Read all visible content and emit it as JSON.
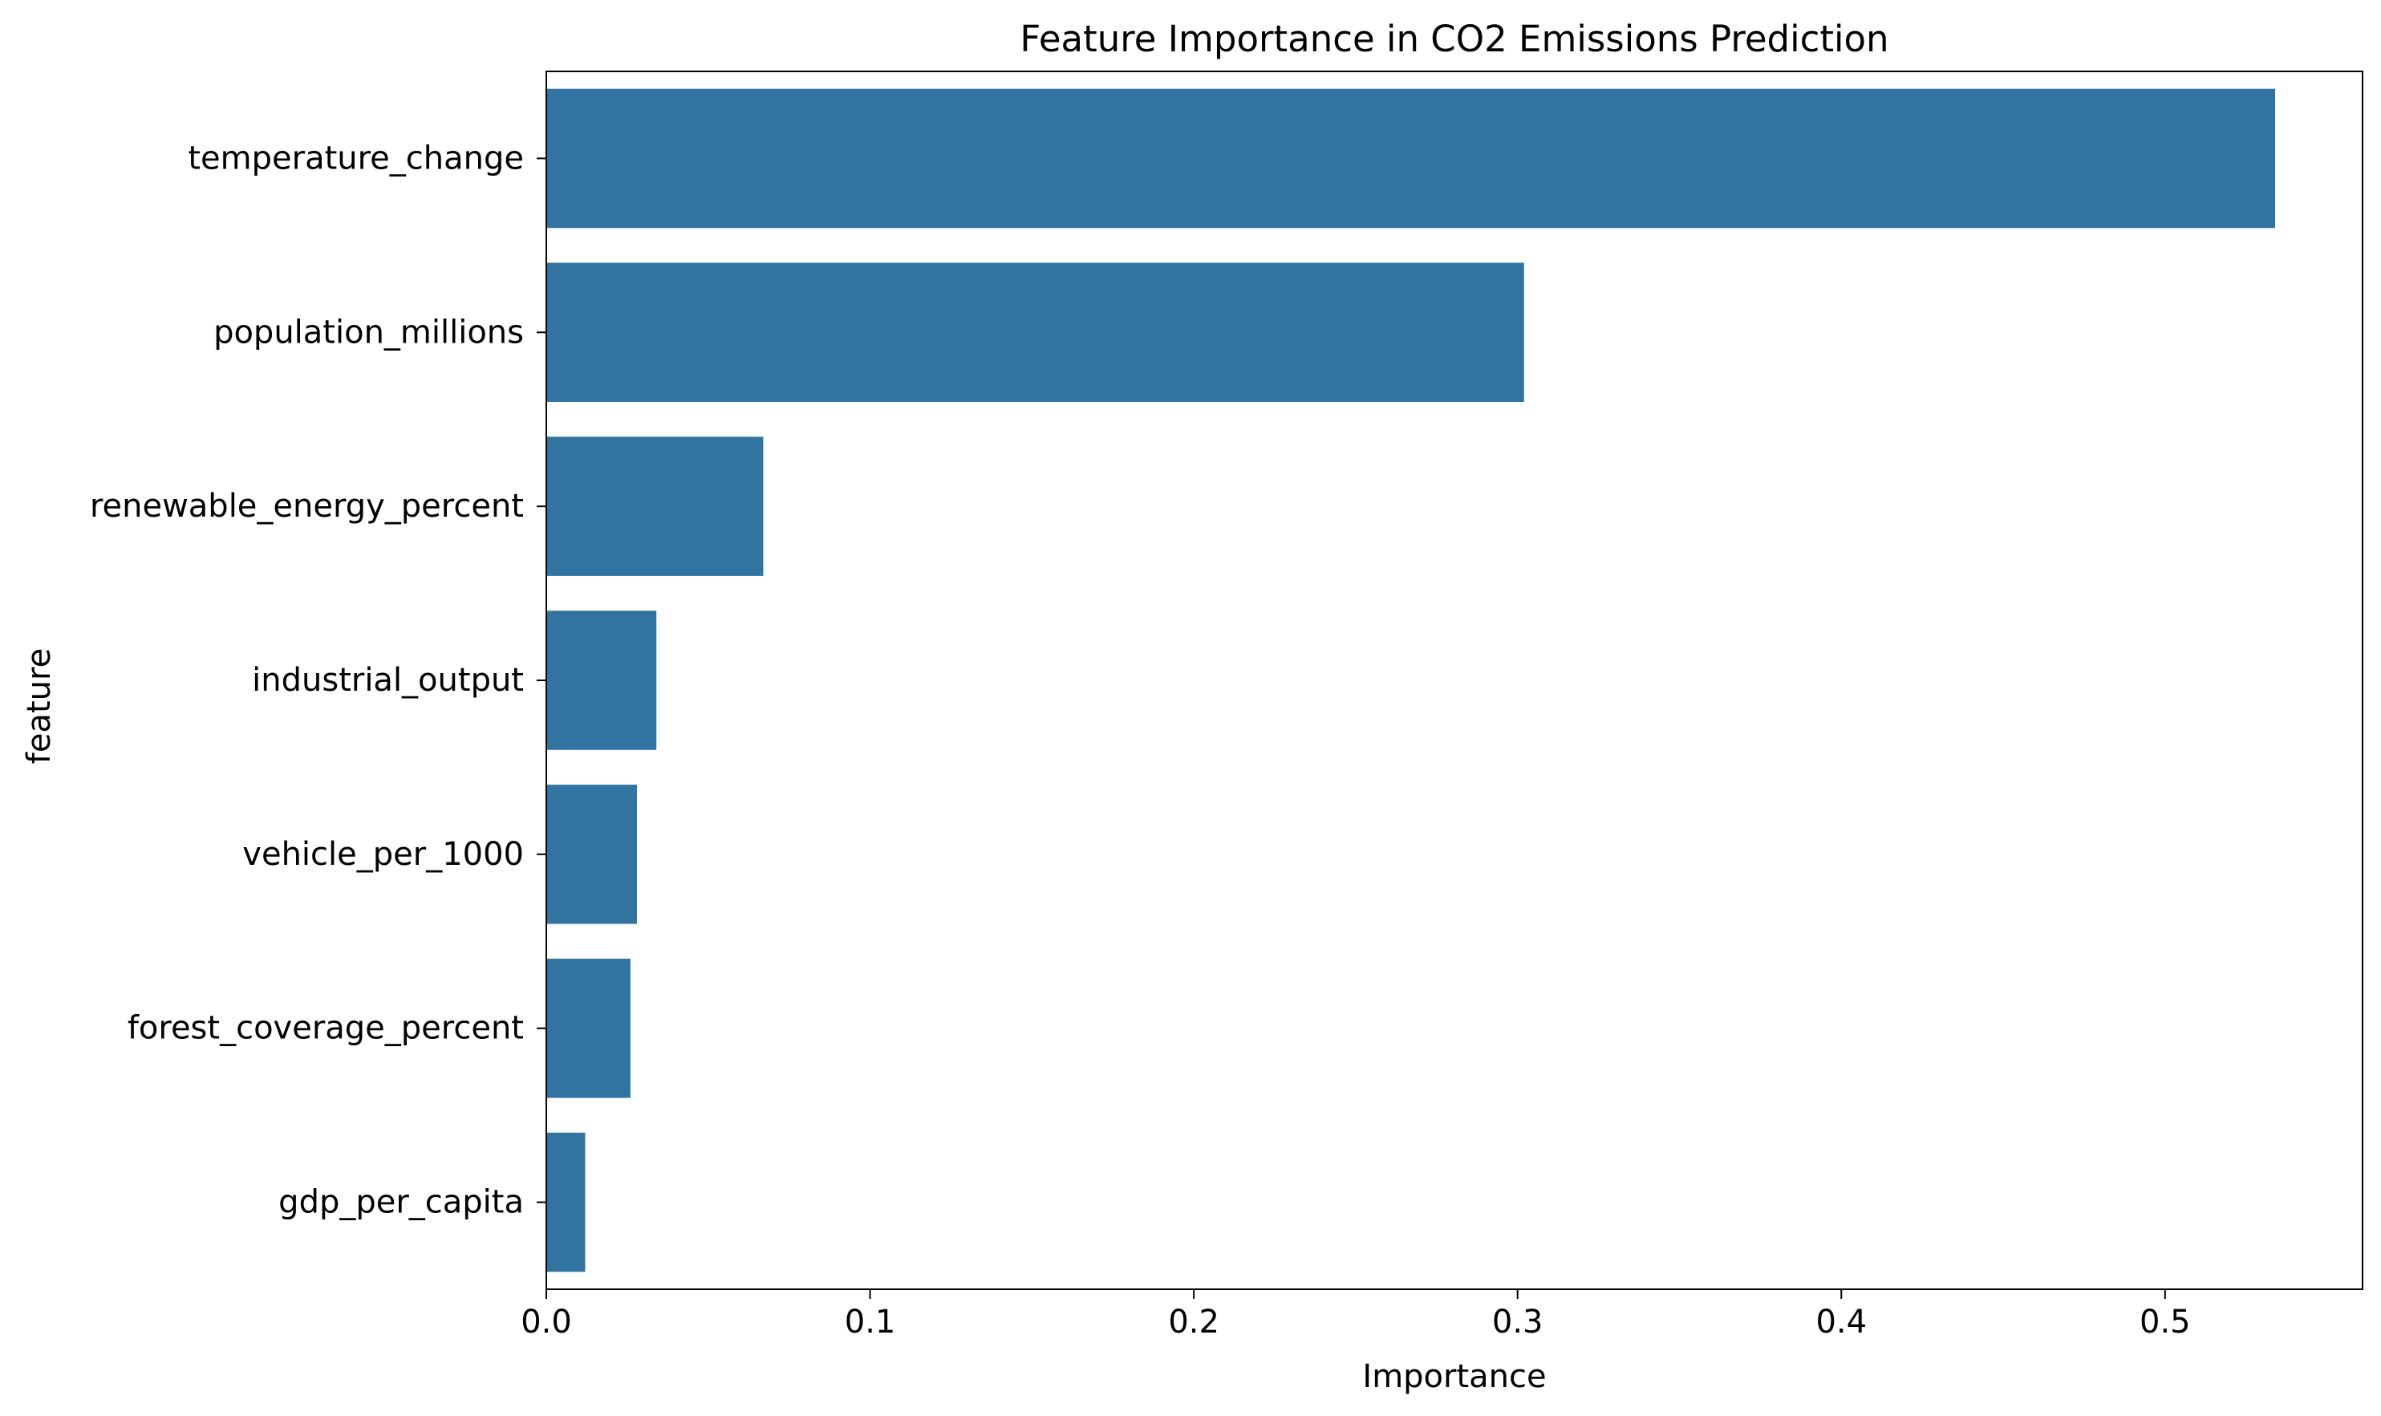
{
  "chart_data": {
    "type": "bar",
    "orientation": "horizontal",
    "title": "Feature Importance in CO2 Emissions Prediction",
    "xlabel": "Importance",
    "ylabel": "feature",
    "categories": [
      "temperature_change",
      "population_millions",
      "renewable_energy_percent",
      "industrial_output",
      "vehicle_per_1000",
      "forest_coverage_percent",
      "gdp_per_capita"
    ],
    "values": [
      0.534,
      0.302,
      0.067,
      0.034,
      0.028,
      0.026,
      0.012
    ],
    "xlim": [
      0,
      0.561
    ],
    "xticks": [
      0.0,
      0.1,
      0.2,
      0.3,
      0.4,
      0.5
    ],
    "xtick_labels": [
      "0.0",
      "0.1",
      "0.2",
      "0.3",
      "0.4",
      "0.5"
    ],
    "grid": false,
    "legend": "none",
    "bar_color": "#3274a1"
  }
}
